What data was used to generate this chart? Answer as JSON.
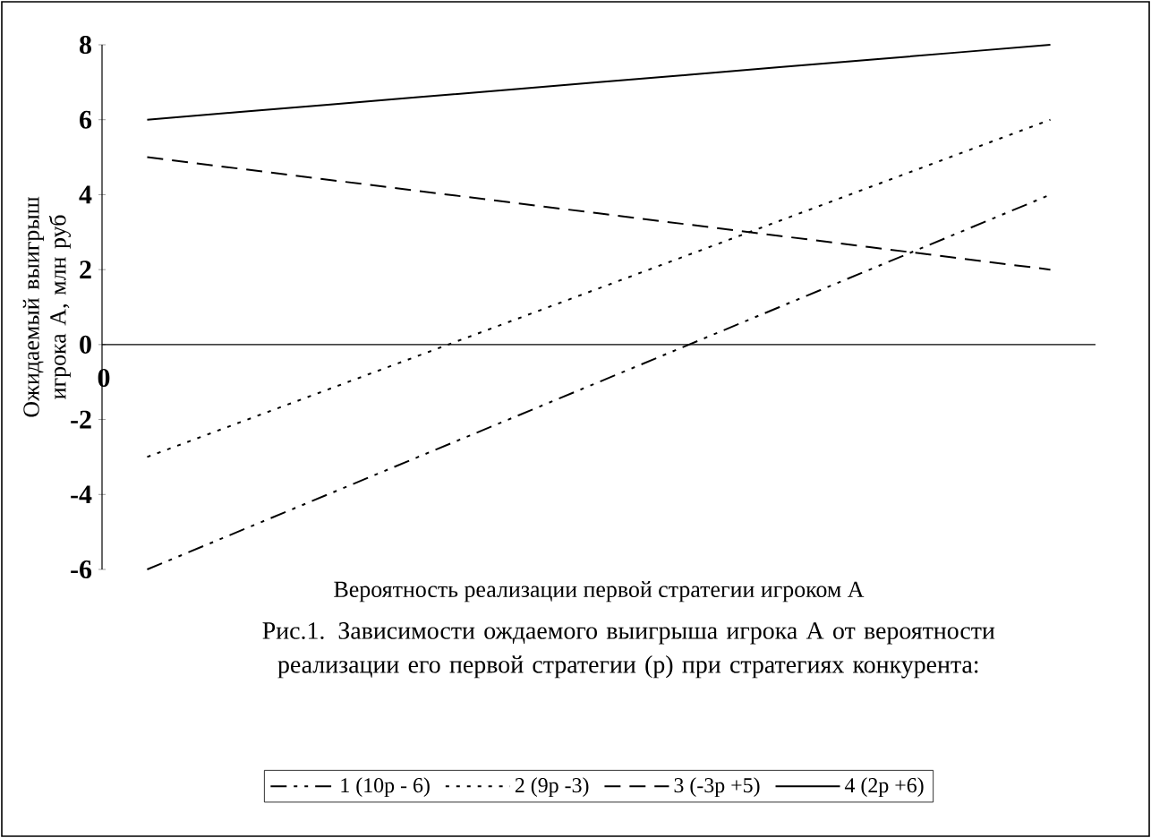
{
  "chart_data": {
    "type": "line",
    "title": "Рис.1. Зависимости ождаемого выигрыша игрока А от вероятности реализации его первой стратегии (р) при стратегиях конкурента:",
    "xlabel": "Вероятность реализации первой стратегии игроком А",
    "ylabel": "Ожидаемый выигрыш игрока А, млн руб",
    "categories": [
      null,
      null,
      null,
      null,
      null,
      null,
      null,
      null,
      null,
      null,
      null
    ],
    "ylim": [
      -6,
      8
    ],
    "yticks": [
      -6,
      -4,
      -2,
      0,
      2,
      4,
      6,
      8
    ],
    "annotations": [
      "0"
    ],
    "legend": "bottom",
    "series": [
      {
        "name": "1 (10р - 6)",
        "color": "#000000",
        "line_style": "dashdotdot",
        "values": [
          -6,
          -5,
          -4,
          -3,
          -2,
          -1,
          0,
          1,
          2,
          3,
          4
        ]
      },
      {
        "name": "2 (9р -3)",
        "color": "#000000",
        "line_style": "dotted",
        "values": [
          -3,
          -2.1,
          -1.2,
          -0.3,
          0.6,
          1.5,
          2.4,
          3.3,
          4.2,
          5.1,
          6
        ]
      },
      {
        "name": "3 (-3р +5)",
        "color": "#000000",
        "line_style": "dashed",
        "values": [
          5,
          4.7,
          4.4,
          4.1,
          3.8,
          3.5,
          3.2,
          2.9,
          2.6,
          2.3,
          2
        ]
      },
      {
        "name": "4 (2р +6)",
        "color": "#000000",
        "line_style": "solid",
        "values": [
          6,
          6.2,
          6.4,
          6.6,
          6.8,
          7,
          7.2,
          7.4,
          7.6,
          7.8,
          8
        ]
      }
    ]
  }
}
